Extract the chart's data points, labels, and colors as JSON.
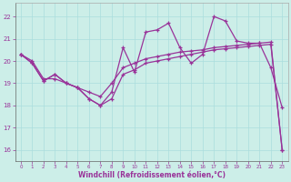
{
  "xlabel": "Windchill (Refroidissement éolien,°C)",
  "bg_color": "#cceee8",
  "line_color": "#993399",
  "grid_color": "#aadddd",
  "x_ticks": [
    0,
    1,
    2,
    3,
    4,
    5,
    6,
    7,
    8,
    9,
    10,
    11,
    12,
    13,
    14,
    15,
    16,
    17,
    18,
    19,
    20,
    21,
    22,
    23
  ],
  "y_ticks": [
    16,
    17,
    18,
    19,
    20,
    21,
    22
  ],
  "ylim": [
    15.5,
    22.6
  ],
  "xlim": [
    -0.5,
    23.5
  ],
  "series1": [
    20.3,
    19.9,
    19.1,
    19.4,
    19.0,
    18.8,
    18.3,
    18.0,
    18.6,
    20.6,
    19.5,
    21.3,
    21.4,
    21.7,
    20.6,
    19.9,
    20.3,
    22.0,
    21.8,
    20.9,
    20.8,
    20.8,
    19.7,
    17.9
  ],
  "series2": [
    20.3,
    20.0,
    19.2,
    19.2,
    19.0,
    18.8,
    18.6,
    18.4,
    19.0,
    19.7,
    19.9,
    20.1,
    20.2,
    20.3,
    20.4,
    20.45,
    20.5,
    20.6,
    20.65,
    20.7,
    20.75,
    20.8,
    20.85,
    16.0
  ],
  "series3": [
    20.3,
    19.9,
    19.1,
    19.4,
    19.0,
    18.8,
    18.3,
    18.0,
    18.3,
    19.4,
    19.6,
    19.9,
    20.0,
    20.1,
    20.2,
    20.3,
    20.4,
    20.5,
    20.55,
    20.6,
    20.65,
    20.7,
    20.75,
    16.0
  ]
}
